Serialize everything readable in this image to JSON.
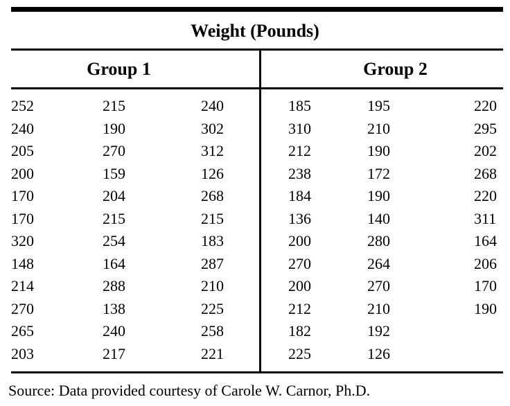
{
  "table": {
    "title": "Weight (Pounds)",
    "groups": [
      {
        "label": "Group 1",
        "rows": [
          [
            "252",
            "215",
            "240"
          ],
          [
            "240",
            "190",
            "302"
          ],
          [
            "205",
            "270",
            "312"
          ],
          [
            "200",
            "159",
            "126"
          ],
          [
            "170",
            "204",
            "268"
          ],
          [
            "170",
            "215",
            "215"
          ],
          [
            "320",
            "254",
            "183"
          ],
          [
            "148",
            "164",
            "287"
          ],
          [
            "214",
            "288",
            "210"
          ],
          [
            "270",
            "138",
            "225"
          ],
          [
            "265",
            "240",
            "258"
          ],
          [
            "203",
            "217",
            "221"
          ]
        ]
      },
      {
        "label": "Group 2",
        "rows": [
          [
            "185",
            "195",
            "220"
          ],
          [
            "310",
            "210",
            "295"
          ],
          [
            "212",
            "190",
            "202"
          ],
          [
            "238",
            "172",
            "268"
          ],
          [
            "184",
            "190",
            "220"
          ],
          [
            "136",
            "140",
            "311"
          ],
          [
            "200",
            "280",
            "164"
          ],
          [
            "270",
            "264",
            "206"
          ],
          [
            "200",
            "270",
            "170"
          ],
          [
            "212",
            "210",
            "190"
          ],
          [
            "182",
            "192"
          ],
          [
            "225",
            "126"
          ]
        ]
      }
    ],
    "source": "Source: Data provided courtesy of Carole W. Carnor, Ph.D."
  },
  "colors": {
    "text": "#000000",
    "background": "#ffffff",
    "rule": "#000000"
  }
}
